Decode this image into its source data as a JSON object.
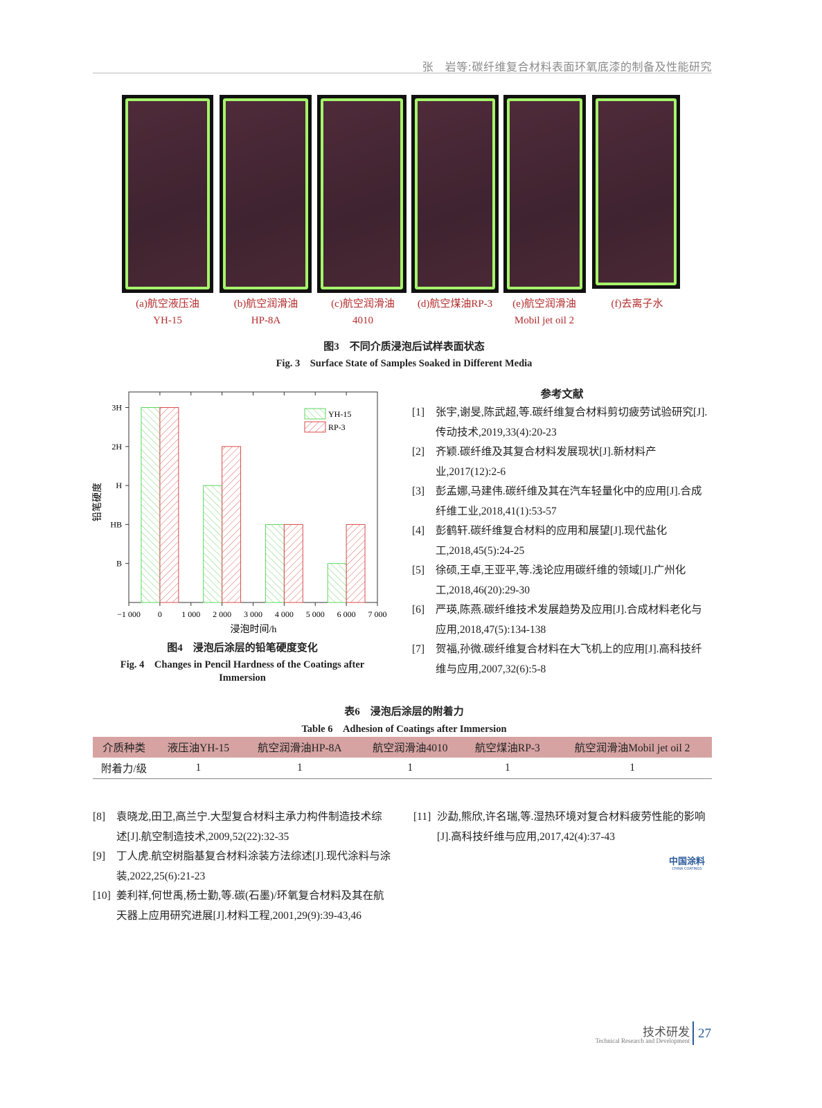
{
  "header": {
    "running_title": "张　岩等:碳纤维复合材料表面环氧底漆的制备及性能研究"
  },
  "figure3": {
    "captions": [
      {
        "line1": "(a)航空液压油",
        "line2": "YH-15"
      },
      {
        "line1": "(b)航空润滑油",
        "line2": "HP-8A"
      },
      {
        "line1": "(c)航空润滑油",
        "line2": "4010"
      },
      {
        "line1": "(d)航空煤油RP-3",
        "line2": ""
      },
      {
        "line1": "(e)航空润滑油",
        "line2": "Mobil jet oil 2"
      },
      {
        "line1": "(f)去离子水",
        "line2": ""
      }
    ],
    "title_cn": "图3　不同介质浸泡后试样表面状态",
    "title_en": "Fig. 3　Surface State of Samples Soaked in Different Media",
    "colors": {
      "frame": "#a6f56a",
      "panel": "#4a2835"
    }
  },
  "chart_data": {
    "type": "bar",
    "xlabel": "浸泡时间/h",
    "ylabel": "铅笔硬度",
    "x": [
      0,
      2000,
      4000,
      6000
    ],
    "xlim": [
      -1000,
      7000
    ],
    "xticks": [
      "−1 000",
      "0",
      "1 000",
      "2 000",
      "3 000",
      "4 000",
      "5 000",
      "6 000",
      "7 000"
    ],
    "yticks": [
      "B",
      "HB",
      "H",
      "2H",
      "3H"
    ],
    "series": [
      {
        "name": "YH-15",
        "values": [
          "3H",
          "H",
          "HB",
          "B"
        ],
        "color": "#5bd65b",
        "hatch": "backslash"
      },
      {
        "name": "RP-3",
        "values": [
          "3H",
          "2H",
          "HB",
          "HB"
        ],
        "color": "#d94a4a",
        "hatch": "slash"
      }
    ],
    "legend": "top-right",
    "grid": false
  },
  "figure4": {
    "title_cn": "图4　浸泡后涂层的铅笔硬度变化",
    "title_en1": "Fig. 4　Changes in Pencil Hardness of the Coatings after",
    "title_en2": "Immersion"
  },
  "references": {
    "title": "参考文献",
    "items": [
      {
        "n": "[1]",
        "text": "张宇,谢旻,陈武超,等.碳纤维复合材料剪切疲劳试验研究[J].传动技术,2019,33(4):20-23"
      },
      {
        "n": "[2]",
        "text": "齐颖.碳纤维及其复合材料发展现状[J].新材料产业,2017(12):2-6"
      },
      {
        "n": "[3]",
        "text": "彭孟娜,马建伟.碳纤维及其在汽车轻量化中的应用[J].合成纤维工业,2018,41(1):53-57"
      },
      {
        "n": "[4]",
        "text": "彭鹤轩.碳纤维复合材料的应用和展望[J].现代盐化工,2018,45(5):24-25"
      },
      {
        "n": "[5]",
        "text": "徐硕,王卓,王亚平,等.浅论应用碳纤维的领域[J].广州化工,2018,46(20):29-30"
      },
      {
        "n": "[6]",
        "text": "严瑛,陈燕.碳纤维技术发展趋势及应用[J].合成材料老化与应用,2018,47(5):134-138"
      },
      {
        "n": "[7]",
        "text": "贺福,孙微.碳纤维复合材料在大飞机上的应用[J].高科技纤维与应用,2007,32(6):5-8"
      },
      {
        "n": "[8]",
        "text": "袁晓龙,田卫,高兰宁.大型复合材料主承力构件制造技术综述[J].航空制造技术,2009,52(22):32-35"
      },
      {
        "n": "[9]",
        "text": "丁人虎.航空树脂基复合材料涂装方法综述[J].现代涂料与涂装,2022,25(6):21-23"
      },
      {
        "n": "[10]",
        "text": "姜利祥,何世禹,杨士勤,等.碳(石墨)/环氧复合材料及其在航天器上应用研究进展[J].材料工程,2001,29(9):39-43,46"
      },
      {
        "n": "[11]",
        "text": "沙勐,熊欣,许名瑞,等.湿热环境对复合材料疲劳性能的影响[J].高科技纤维与应用,2017,42(4):37-43"
      }
    ]
  },
  "table6": {
    "title_cn": "表6　浸泡后涂层的附着力",
    "title_en": "Table 6　Adhesion of Coatings after Immersion",
    "headers": [
      "介质种类",
      "液压油YH-15",
      "航空润滑油HP-8A",
      "航空润滑油4010",
      "航空煤油RP-3",
      "航空润滑油Mobil jet oil 2"
    ],
    "row": [
      "附着力/级",
      "1",
      "1",
      "1",
      "1",
      "1"
    ],
    "header_color": "#d6a3a2"
  },
  "logo": {
    "cn": "中国涂料",
    "en": "CHINA COATINGS"
  },
  "footer": {
    "section_cn": "技术研发",
    "section_en": "Technical Research and Development",
    "page": "27"
  }
}
